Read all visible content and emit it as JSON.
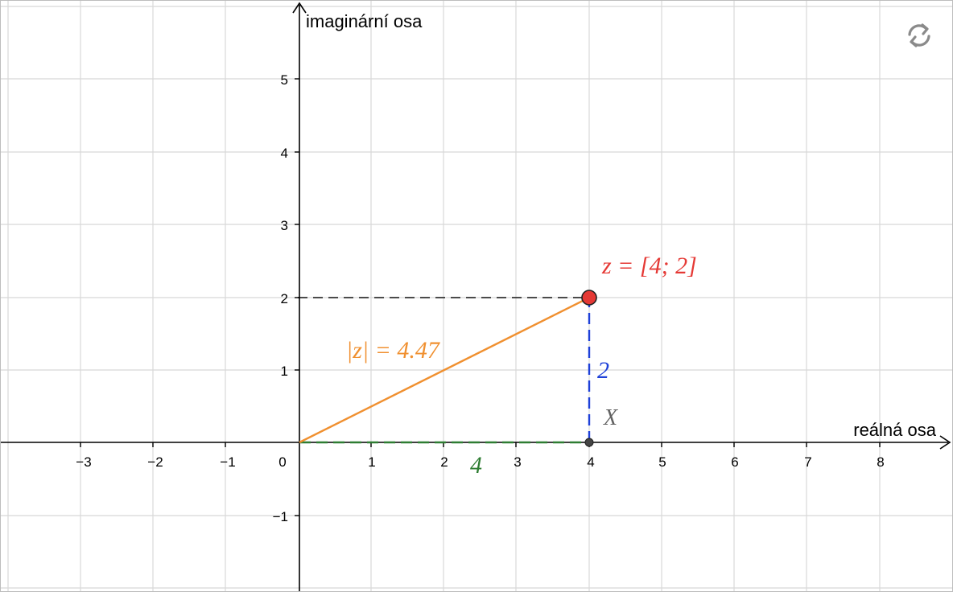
{
  "axes": {
    "x_label": "reálná osa",
    "y_label": "imaginární osa",
    "x_ticks": [
      "−3",
      "−2",
      "−1",
      "0",
      "1",
      "2",
      "3",
      "4",
      "5",
      "6",
      "7",
      "8"
    ],
    "y_ticks": [
      "5",
      "4",
      "3",
      "2",
      "1",
      "−1"
    ]
  },
  "point_z": {
    "label": "z = [4; 2]",
    "x": 4,
    "y": 2,
    "color": "#e53935"
  },
  "point_X": {
    "label": "X",
    "x": 4,
    "y": 0,
    "color": "#616161"
  },
  "modulus": {
    "label": "|z| = 4.47",
    "color": "#f09030"
  },
  "real_part": {
    "label": "4",
    "color": "#2e7d32"
  },
  "imag_part": {
    "label": "2",
    "color": "#1e40d8"
  },
  "reset": {
    "icon": "refresh-icon"
  }
}
